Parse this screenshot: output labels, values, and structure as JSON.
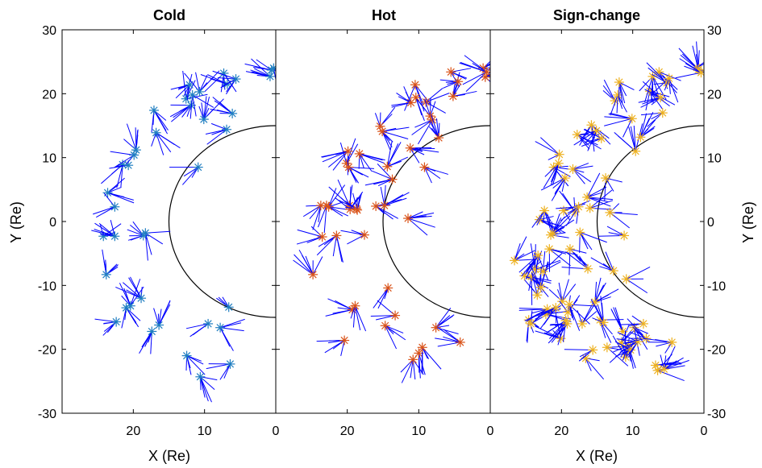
{
  "chart_data": [
    {
      "type": "scatter",
      "title": "Cold",
      "xlabel": "X (Re)",
      "ylabel": "Y (Re)",
      "xlim": [
        30,
        0
      ],
      "ylim": [
        -30,
        30
      ],
      "xticks": [
        20,
        10,
        0
      ],
      "yticks": [
        -30,
        -20,
        -10,
        0,
        10,
        20,
        30
      ],
      "marker_color": "#1f7ec1",
      "vector_color": "#0000ff",
      "boundary": {
        "radius": 15,
        "center": [
          0,
          0
        ],
        "color": "#000000"
      },
      "points": [
        [
          24.2,
          -2.3
        ],
        [
          23.8,
          -8.3
        ],
        [
          23.6,
          4.5
        ],
        [
          22.6,
          -2.3
        ],
        [
          22.6,
          2.3
        ],
        [
          22.4,
          -15.7
        ],
        [
          21.5,
          8.9
        ],
        [
          21.0,
          -13.5
        ],
        [
          20.7,
          8.8
        ],
        [
          20.4,
          -13.2
        ],
        [
          19.9,
          10.4
        ],
        [
          19.6,
          11.2
        ],
        [
          18.9,
          -12.0
        ],
        [
          18.6,
          -2.2
        ],
        [
          18.3,
          -1.8
        ],
        [
          17.4,
          -17.2
        ],
        [
          17.1,
          17.4
        ],
        [
          16.8,
          13.9
        ],
        [
          16.4,
          -16.2
        ],
        [
          12.5,
          -21.0
        ],
        [
          12.6,
          19.2
        ],
        [
          12.1,
          21.4
        ],
        [
          11.9,
          18.2
        ],
        [
          11.7,
          19.8
        ],
        [
          10.9,
          8.5
        ],
        [
          10.7,
          20.3
        ],
        [
          10.6,
          -24.3
        ],
        [
          10.1,
          16.0
        ],
        [
          9.5,
          -16.0
        ],
        [
          7.8,
          -16.6
        ],
        [
          7.3,
          23.2
        ],
        [
          6.9,
          14.4
        ],
        [
          6.8,
          21.5
        ],
        [
          6.6,
          -13.4
        ],
        [
          6.4,
          -22.3
        ],
        [
          6.1,
          16.9
        ],
        [
          5.6,
          22.3
        ],
        [
          0.8,
          22.7
        ],
        [
          0.6,
          23.7
        ],
        [
          0.3,
          24.0
        ]
      ]
    },
    {
      "type": "scatter",
      "title": "Hot",
      "xlabel": "",
      "ylabel": "",
      "xlim": [
        30,
        0
      ],
      "ylim": [
        -30,
        30
      ],
      "xticks": [
        20,
        10,
        0
      ],
      "marker_color": "#d95319",
      "vector_color": "#0000ff",
      "boundary": {
        "radius": 15,
        "center": [
          0,
          0
        ],
        "color": "#000000"
      },
      "points": [
        [
          24.8,
          -8.3
        ],
        [
          23.7,
          2.5
        ],
        [
          23.5,
          -2.4
        ],
        [
          22.9,
          2.5
        ],
        [
          22.6,
          2.3
        ],
        [
          21.5,
          -2.2
        ],
        [
          20.4,
          -18.6
        ],
        [
          20.1,
          9.1
        ],
        [
          19.9,
          11.0
        ],
        [
          19.8,
          8.5
        ],
        [
          19.7,
          2.5
        ],
        [
          19.6,
          1.9
        ],
        [
          19.3,
          -13.8
        ],
        [
          18.9,
          -13.2
        ],
        [
          18.7,
          2.0
        ],
        [
          18.6,
          1.8
        ],
        [
          18.3,
          10.6
        ],
        [
          17.6,
          -2.1
        ],
        [
          16.0,
          2.4
        ],
        [
          15.4,
          14.9
        ],
        [
          15.1,
          14.1
        ],
        [
          14.8,
          2.5
        ],
        [
          14.7,
          -16.3
        ],
        [
          14.4,
          8.6
        ],
        [
          14.3,
          -10.4
        ],
        [
          13.7,
          6.6
        ],
        [
          13.3,
          -14.7
        ],
        [
          11.5,
          0.5
        ],
        [
          11.2,
          11.5
        ],
        [
          11.1,
          18.6
        ],
        [
          10.8,
          -21.6
        ],
        [
          10.5,
          21.4
        ],
        [
          10.4,
          19.4
        ],
        [
          10.0,
          -20.6
        ],
        [
          9.5,
          -19.7
        ],
        [
          9.2,
          8.5
        ],
        [
          9.0,
          18.7
        ],
        [
          8.4,
          16.5
        ],
        [
          8.1,
          15.9
        ],
        [
          7.6,
          -16.6
        ],
        [
          7.2,
          13.1
        ],
        [
          5.5,
          23.4
        ],
        [
          5.2,
          19.6
        ],
        [
          4.5,
          21.9
        ],
        [
          4.2,
          -18.9
        ],
        [
          1.0,
          24.0
        ],
        [
          0.7,
          22.6
        ],
        [
          0.5,
          23.4
        ]
      ]
    },
    {
      "type": "scatter",
      "title": "Sign-change",
      "xlabel": "X (Re)",
      "ylabel": "Y (Re)",
      "xlim": [
        30,
        0
      ],
      "ylim": [
        -30,
        30
      ],
      "xticks": [
        20,
        10,
        0
      ],
      "yticks": [
        -30,
        -20,
        -10,
        0,
        10,
        20,
        30
      ],
      "marker_color": "#edb120",
      "vector_color": "#0000ff",
      "boundary": {
        "radius": 15,
        "center": [
          0,
          0
        ],
        "color": "#000000"
      },
      "points": [
        [
          26.6,
          -6.1
        ],
        [
          25.2,
          -8.5
        ],
        [
          24.6,
          -15.4
        ],
        [
          24.3,
          -16.0
        ],
        [
          24.2,
          -8.6
        ],
        [
          23.7,
          -7.5
        ],
        [
          23.4,
          -11.5
        ],
        [
          23.3,
          -5.3
        ],
        [
          23.1,
          0.3
        ],
        [
          22.9,
          -10.3
        ],
        [
          22.6,
          -7.8
        ],
        [
          22.4,
          1.7
        ],
        [
          22.2,
          -14.5
        ],
        [
          22.0,
          -13.7
        ],
        [
          21.7,
          -4.3
        ],
        [
          21.5,
          -2.1
        ],
        [
          21.2,
          -1.8
        ],
        [
          21.1,
          8.5
        ],
        [
          20.8,
          -13.5
        ],
        [
          20.4,
          9.1
        ],
        [
          20.3,
          10.5
        ],
        [
          20.1,
          -18.3
        ],
        [
          19.9,
          -12.5
        ],
        [
          19.7,
          1.7
        ],
        [
          19.5,
          6.8
        ],
        [
          19.4,
          -15.5
        ],
        [
          19.2,
          -16.0
        ],
        [
          19.1,
          -14.2
        ],
        [
          18.9,
          -13.0
        ],
        [
          18.8,
          -4.3
        ],
        [
          18.4,
          8.2
        ],
        [
          18.1,
          1.5
        ],
        [
          17.8,
          13.6
        ],
        [
          17.6,
          2.3
        ],
        [
          17.4,
          -1.7
        ],
        [
          17.1,
          -16.0
        ],
        [
          16.6,
          -21.4
        ],
        [
          16.4,
          3.8
        ],
        [
          16.3,
          -7.4
        ],
        [
          16.0,
          2.1
        ],
        [
          15.8,
          15.1
        ],
        [
          15.6,
          -20.1
        ],
        [
          15.3,
          -12.6
        ],
        [
          15.1,
          14.2
        ],
        [
          14.6,
          -15.4
        ],
        [
          14.4,
          13.0
        ],
        [
          14.1,
          -15.8
        ],
        [
          13.8,
          6.8
        ],
        [
          13.6,
          -19.7
        ],
        [
          13.2,
          1.4
        ],
        [
          12.7,
          -7.7
        ],
        [
          12.5,
          18.9
        ],
        [
          12.1,
          19.8
        ],
        [
          11.9,
          21.8
        ],
        [
          11.6,
          -19.0
        ],
        [
          11.4,
          -17.2
        ],
        [
          11.2,
          -2.2
        ],
        [
          11.0,
          -21.2
        ],
        [
          10.9,
          -9.0
        ],
        [
          10.6,
          -19.4
        ],
        [
          10.3,
          -20.1
        ],
        [
          10.1,
          16.1
        ],
        [
          9.8,
          -16.6
        ],
        [
          9.6,
          11.0
        ],
        [
          9.3,
          -18.8
        ],
        [
          8.9,
          13.2
        ],
        [
          8.5,
          -16.0
        ],
        [
          8.1,
          -18.3
        ],
        [
          7.6,
          20.4
        ],
        [
          7.2,
          22.7
        ],
        [
          6.8,
          -22.5
        ],
        [
          6.5,
          -23.3
        ],
        [
          6.3,
          23.4
        ],
        [
          6.1,
          19.4
        ],
        [
          5.8,
          17.0
        ],
        [
          5.6,
          -23.1
        ],
        [
          5.2,
          21.7
        ],
        [
          4.9,
          22.4
        ],
        [
          4.5,
          -18.9
        ],
        [
          1.0,
          24.1
        ],
        [
          0.8,
          23.8
        ],
        [
          0.4,
          23.3
        ]
      ]
    }
  ]
}
